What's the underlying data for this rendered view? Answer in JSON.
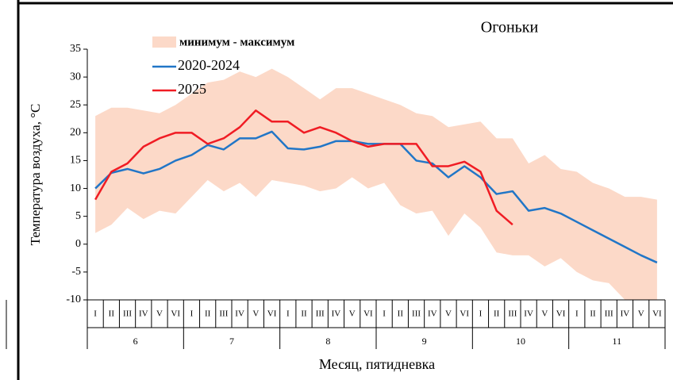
{
  "chart_data": {
    "type": "line",
    "title": "Огоньки",
    "ylabel": "Температура воздуха, °С",
    "xlabel": "Месяц, пятидневка",
    "categories": [
      "I",
      "II",
      "III",
      "IV",
      "V",
      "VI",
      "I",
      "II",
      "III",
      "IV",
      "V",
      "VI",
      "I",
      "II",
      "III",
      "IV",
      "V",
      "VI",
      "I",
      "II",
      "III",
      "IV",
      "V",
      "VI",
      "I",
      "II",
      "III",
      "IV",
      "V",
      "VI",
      "I",
      "II",
      "III",
      "IV",
      "V",
      "VI"
    ],
    "months": [
      "6",
      "7",
      "8",
      "9",
      "10",
      "11"
    ],
    "ylim": [
      -10,
      35
    ],
    "yticks": [
      -10,
      -5,
      0,
      5,
      10,
      15,
      20,
      25,
      30,
      35
    ],
    "band": {
      "name": "минимум - максимум",
      "color": "#fcd9c8",
      "max": [
        23,
        24.5,
        24.5,
        24,
        23.5,
        25,
        27,
        29,
        29.5,
        31,
        30,
        31.5,
        30,
        28,
        26,
        28,
        28,
        27,
        26,
        25,
        23.5,
        23,
        21,
        21.5,
        22,
        19,
        19,
        14.5,
        16,
        13.5,
        13,
        11,
        10,
        8.5,
        8.5,
        8
      ],
      "min": [
        2,
        3.5,
        6.5,
        4.5,
        6,
        5.5,
        8.5,
        11.5,
        9.5,
        11,
        8.5,
        11.5,
        11,
        10.5,
        9.5,
        10,
        12,
        10,
        11,
        7,
        5.5,
        6,
        1.5,
        5.5,
        3,
        -1.5,
        -2,
        -2,
        -4,
        -2.5,
        -5,
        -6.5,
        -7,
        -10,
        -10,
        -10
      ]
    },
    "series": [
      {
        "name": "2020-2024",
        "color": "#2176c7",
        "values": [
          10,
          12.8,
          13.5,
          12.7,
          13.5,
          15,
          16,
          17.8,
          17,
          19,
          19,
          20.2,
          17.2,
          17,
          17.5,
          18.5,
          18.5,
          18,
          18,
          18,
          15,
          14.5,
          12,
          14,
          12,
          9,
          9.5,
          6,
          6.5,
          5.5,
          4,
          2.5,
          1,
          -0.5,
          -2,
          -3.3
        ]
      },
      {
        "name": "2025",
        "color": "#f01c24",
        "values": [
          8,
          13,
          14.5,
          17.5,
          19,
          20,
          20,
          18,
          19,
          21,
          24,
          22,
          22,
          20,
          21,
          20,
          18.5,
          17.5,
          18,
          18,
          18,
          14,
          14,
          14.8,
          13,
          6,
          3.5,
          null,
          null,
          null,
          null,
          null,
          null,
          null,
          null,
          null
        ]
      }
    ]
  }
}
